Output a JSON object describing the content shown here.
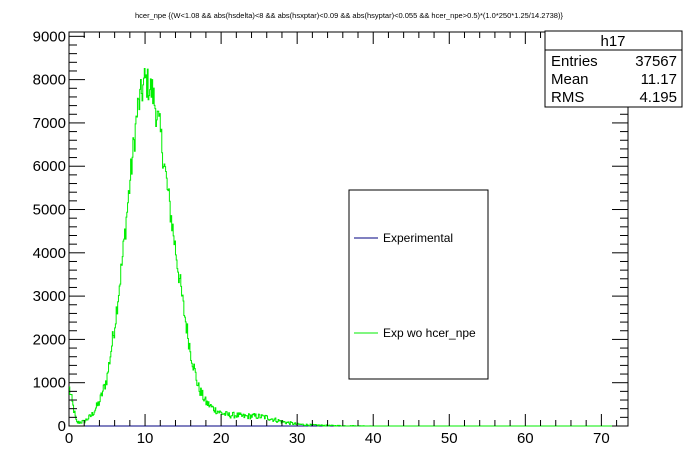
{
  "chart_data": {
    "type": "histogram",
    "title": "hcer_npe {(W<1.08 && abs(hsdelta)<8 && abs(hsxptar)<0.09 && abs(hsyptar)<0.055 && hcer_npe>0.5)*(1.0*250*1.25/14.2738)}",
    "xlim": [
      0,
      73.5
    ],
    "ylim": [
      0,
      9100
    ],
    "xticks": [
      0,
      10,
      20,
      30,
      40,
      50,
      60,
      70
    ],
    "yticks": [
      0,
      1000,
      2000,
      3000,
      4000,
      5000,
      6000,
      7000,
      8000,
      9000
    ],
    "xtick_labels": [
      "0",
      "10",
      "20",
      "30",
      "40",
      "50",
      "60",
      "70"
    ],
    "ytick_labels": [
      "0",
      "1000",
      "2000",
      "3000",
      "4000",
      "5000",
      "6000",
      "7000",
      "8000",
      "9000"
    ],
    "grid": false,
    "legend_position": "center-right",
    "series": [
      {
        "name": "Experimental",
        "color": "#000080",
        "x": [
          0,
          73.5
        ],
        "y": [
          0,
          0
        ]
      },
      {
        "name": "Exp wo hcer_npe",
        "color": "#00ee00",
        "x": [
          0,
          1,
          2,
          3,
          4,
          5,
          6,
          7,
          8,
          9,
          10,
          11,
          12,
          13,
          14,
          15,
          16,
          17,
          18,
          19,
          20,
          21,
          22,
          23,
          24,
          25,
          26,
          27,
          28,
          29,
          30,
          32,
          34,
          36,
          40,
          73.5
        ],
        "y": [
          900,
          80,
          100,
          250,
          550,
          1100,
          2300,
          3800,
          5600,
          7300,
          8000,
          7700,
          6800,
          5400,
          4100,
          2800,
          1700,
          900,
          550,
          400,
          300,
          250,
          250,
          220,
          230,
          220,
          200,
          150,
          100,
          70,
          40,
          20,
          10,
          5,
          0,
          0
        ]
      }
    ],
    "stats_box": {
      "title": "h17",
      "rows": [
        {
          "label": "Entries",
          "value": "37567"
        },
        {
          "label": "Mean",
          "value": "11.17"
        },
        {
          "label": "RMS",
          "value": "4.195"
        }
      ]
    },
    "legend": [
      {
        "label": "Experimental",
        "color": "#000080"
      },
      {
        "label": "Exp wo hcer_npe",
        "color": "#00ee00"
      }
    ]
  }
}
